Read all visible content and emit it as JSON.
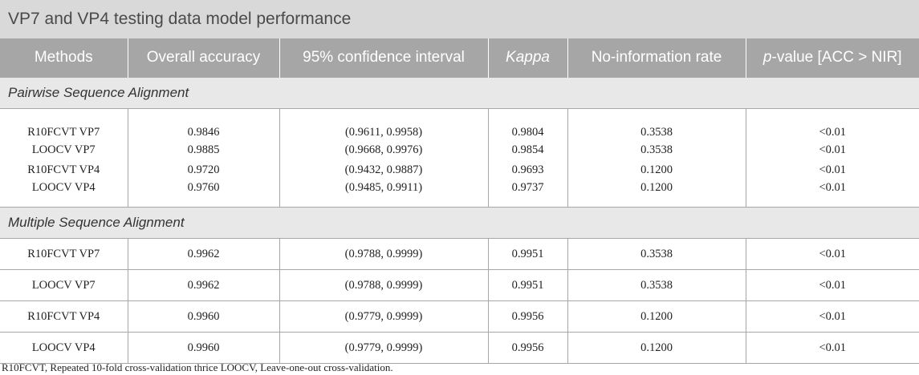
{
  "title": "VP7 and VP4 testing data model performance",
  "headers": {
    "methods": "Methods",
    "overall_accuracy": "Overall accuracy",
    "ci": "95% confidence interval",
    "kappa": "Kappa",
    "nir": "No-information rate",
    "pvalue_italic": "p",
    "pvalue_rest": "-value [ACC > NIR]"
  },
  "sections": [
    {
      "label": "Pairwise Sequence Alignment",
      "rows": [
        [
          "R10FCVT VP7",
          "0.9846",
          "(0.9611, 0.9958)",
          "0.9804",
          "0.3538",
          "<0.01"
        ],
        [
          "LOOCV VP7",
          "0.9885",
          "(0.9668, 0.9976)",
          "0.9854",
          "0.3538",
          "<0.01"
        ],
        [
          "R10FCVT VP4",
          "0.9720",
          "(0.9432, 0.9887)",
          "0.9693",
          "0.1200",
          "<0.01"
        ],
        [
          "LOOCV VP4",
          "0.9760",
          "(0.9485, 0.9911)",
          "0.9737",
          "0.1200",
          "<0.01"
        ]
      ]
    },
    {
      "label": "Multiple Sequence Alignment",
      "rows": [
        [
          "R10FCVT VP7",
          "0.9962",
          "(0.9788, 0.9999)",
          "0.9951",
          "0.3538",
          "<0.01"
        ],
        [
          "LOOCV VP7",
          "0.9962",
          "(0.9788, 0.9999)",
          "0.9951",
          "0.3538",
          "<0.01"
        ],
        [
          "R10FCVT VP4",
          "0.9960",
          "(0.9779, 0.9999)",
          "0.9956",
          "0.1200",
          "<0.01"
        ],
        [
          "LOOCV VP4",
          "0.9960",
          "(0.9779, 0.9999)",
          "0.9956",
          "0.1200",
          "<0.01"
        ]
      ]
    }
  ],
  "footnote": "R10FCVT, Repeated 10-fold cross-validation thrice LOOCV, Leave-one-out cross-validation."
}
